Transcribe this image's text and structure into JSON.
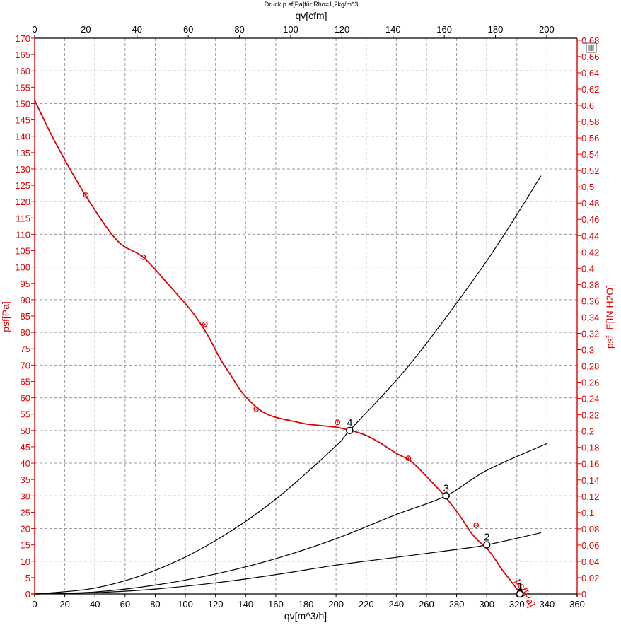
{
  "chart_data": {
    "type": "line",
    "title": "Druck p sf[Pa]für Rho=1,2kg/m^3",
    "xlabel": "qv[m^3/h]",
    "x2label": "qv[cfm]",
    "ylabel": "psf[Pa]",
    "y2label": "psf_E[IN H2O]",
    "xlim": [
      0,
      360
    ],
    "ylim": [
      0,
      170
    ],
    "x2lim": [
      0,
      211.9
    ],
    "y2lim": [
      0,
      0.6825
    ],
    "x_ticks": [
      "0",
      "20",
      "40",
      "60",
      "80",
      "100",
      "120",
      "140",
      "160",
      "180",
      "200",
      "220",
      "240",
      "260",
      "280",
      "300",
      "320",
      "340",
      "360"
    ],
    "y_ticks": [
      "0",
      "5",
      "10",
      "15",
      "20",
      "25",
      "30",
      "35",
      "40",
      "45",
      "50",
      "55",
      "60",
      "65",
      "70",
      "75",
      "80",
      "85",
      "90",
      "95",
      "100",
      "105",
      "110",
      "115",
      "120",
      "125",
      "130",
      "135",
      "140",
      "145",
      "150",
      "155",
      "160",
      "165",
      "170"
    ],
    "x2_ticks": [
      "0",
      "20",
      "40",
      "60",
      "80",
      "100",
      "120",
      "140",
      "160",
      "180",
      "200"
    ],
    "y2_ticks": [
      "0",
      "0,02",
      "0,04",
      "0,06",
      "0,08",
      "0,1",
      "0,12",
      "0,14",
      "0,16",
      "0,18",
      "0,2",
      "0,22",
      "0,24",
      "0,26",
      "0,28",
      "0,3",
      "0,32",
      "0,34",
      "0,36",
      "0,38",
      "0,4",
      "0,42",
      "0,44",
      "0,46",
      "0,48",
      "0,5",
      "0,52",
      "0,54",
      "0,56",
      "0,58",
      "0,6",
      "0,62",
      "0,64",
      "0,66",
      "0,68"
    ],
    "series": [
      {
        "name": "psf[Pa]",
        "color": "#e00000",
        "x": [
          0,
          15,
          35,
          55,
          72,
          90,
          105,
          115,
          123,
          130,
          137,
          145,
          152,
          160,
          170,
          180,
          190,
          200,
          205,
          210,
          220,
          230,
          240,
          250,
          262,
          272,
          282,
          290,
          295,
          300,
          305,
          310,
          316,
          320,
          322
        ],
        "y": [
          151,
          137,
          121,
          108,
          103,
          94,
          86,
          79,
          72,
          67,
          62,
          58,
          55.5,
          54,
          53,
          52,
          51.5,
          51,
          50.5,
          50,
          48.5,
          46,
          43,
          40.5,
          35,
          30,
          24,
          18.5,
          16,
          14,
          11,
          7.5,
          4,
          1.5,
          0
        ]
      },
      {
        "name": "",
        "color": "#000000",
        "x": [
          0,
          40,
          80,
          120,
          160,
          200,
          209,
          250,
          300,
          336
        ],
        "y": [
          0,
          1.8,
          7.2,
          16.3,
          29,
          45.3,
          50,
          70.8,
          101.9,
          127.9
        ]
      },
      {
        "name": "",
        "color": "#000000",
        "x": [
          0,
          40,
          80,
          120,
          160,
          200,
          240,
          273,
          300,
          340
        ],
        "y": [
          0,
          0.6,
          2.7,
          6.1,
          10.8,
          16.9,
          24.3,
          30,
          37.8,
          46
        ]
      },
      {
        "name": "",
        "color": "#000000",
        "x": [
          0,
          40,
          80,
          120,
          160,
          200,
          240,
          280,
          300,
          336
        ],
        "y": [
          0,
          0.4,
          1.5,
          3.4,
          5.9,
          8.8,
          11.2,
          13.6,
          15,
          18.7
        ]
      }
    ],
    "measured_points": [
      {
        "x": 34,
        "y": 122
      },
      {
        "x": 72,
        "y": 103
      },
      {
        "x": 113,
        "y": 82.5
      },
      {
        "x": 147,
        "y": 56.5
      },
      {
        "x": 201,
        "y": 52.5
      },
      {
        "x": 248,
        "y": 41.5
      },
      {
        "x": 293,
        "y": 21
      }
    ],
    "operating_points": [
      {
        "label": "1",
        "x": 322,
        "y": 0
      },
      {
        "label": "2",
        "x": 300,
        "y": 15
      },
      {
        "label": "3",
        "x": 273,
        "y": 30
      },
      {
        "label": "4",
        "x": 209,
        "y": 50
      }
    ],
    "curve_label": "psf[Pa]",
    "grid": true
  }
}
